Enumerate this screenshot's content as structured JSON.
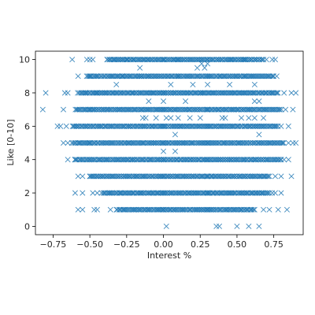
{
  "chart_data": {
    "type": "scatter",
    "marker": "x",
    "color": "#1f77b4",
    "xlabel": "Interest %",
    "ylabel": "Like [0-10]",
    "xlim": [
      -0.87,
      0.95
    ],
    "ylim": [
      -0.5,
      10.5
    ],
    "xticks": [
      -0.75,
      -0.5,
      -0.25,
      0.0,
      0.25,
      0.5,
      0.75
    ],
    "xtick_labels": [
      "−0.75",
      "−0.50",
      "−0.25",
      "0.00",
      "0.25",
      "0.50",
      "0.75"
    ],
    "yticks": [
      0,
      2,
      4,
      6,
      8,
      10
    ],
    "ytick_labels": [
      "0",
      "2",
      "4",
      "6",
      "8",
      "10"
    ],
    "grid": false,
    "dense_ranges": [
      {
        "y": 10,
        "x": [
          -0.38,
          0.68
        ]
      },
      {
        "y": 9,
        "x": [
          -0.52,
          0.75
        ]
      },
      {
        "y": 8,
        "x": [
          -0.58,
          0.78
        ]
      },
      {
        "y": 7,
        "x": [
          -0.6,
          0.8
        ]
      },
      {
        "y": 6,
        "x": [
          -0.62,
          0.78
        ]
      },
      {
        "y": 5,
        "x": [
          -0.62,
          0.82
        ]
      },
      {
        "y": 4,
        "x": [
          -0.6,
          0.8
        ]
      },
      {
        "y": 3,
        "x": [
          -0.5,
          0.72
        ]
      },
      {
        "y": 2,
        "x": [
          -0.42,
          0.72
        ]
      },
      {
        "y": 1,
        "x": [
          -0.32,
          0.62
        ]
      }
    ],
    "points": [
      {
        "x": -0.52,
        "y": 10
      },
      {
        "x": -0.5,
        "y": 10
      },
      {
        "x": -0.48,
        "y": 10
      },
      {
        "x": -0.38,
        "y": 10
      },
      {
        "x": -0.33,
        "y": 10
      },
      {
        "x": -0.25,
        "y": 10
      },
      {
        "x": -0.2,
        "y": 10
      },
      {
        "x": 0.0,
        "y": 10
      },
      {
        "x": 0.1,
        "y": 10
      },
      {
        "x": 0.3,
        "y": 10
      },
      {
        "x": 0.55,
        "y": 10
      },
      {
        "x": 0.7,
        "y": 10
      },
      {
        "x": 0.74,
        "y": 10
      },
      {
        "x": 0.76,
        "y": 10
      },
      {
        "x": -0.62,
        "y": 10
      },
      {
        "x": -0.28,
        "y": 9
      },
      {
        "x": -0.15,
        "y": 9
      },
      {
        "x": 0.1,
        "y": 9
      },
      {
        "x": 0.3,
        "y": 9
      },
      {
        "x": 0.55,
        "y": 9
      },
      {
        "x": 0.77,
        "y": 9
      },
      {
        "x": -0.58,
        "y": 9
      },
      {
        "x": -0.5,
        "y": 9
      },
      {
        "x": -0.16,
        "y": 9.5
      },
      {
        "x": 0.23,
        "y": 9.5
      },
      {
        "x": 0.28,
        "y": 9.5
      },
      {
        "x": 0.26,
        "y": 9.75
      },
      {
        "x": 0.3,
        "y": 9.75
      },
      {
        "x": -0.8,
        "y": 8
      },
      {
        "x": -0.67,
        "y": 8
      },
      {
        "x": -0.65,
        "y": 8
      },
      {
        "x": -0.45,
        "y": 8
      },
      {
        "x": 0.0,
        "y": 8
      },
      {
        "x": 0.25,
        "y": 8
      },
      {
        "x": 0.82,
        "y": 8
      },
      {
        "x": 0.87,
        "y": 8
      },
      {
        "x": 0.9,
        "y": 8
      },
      {
        "x": -0.32,
        "y": 8.5
      },
      {
        "x": 0.05,
        "y": 8.5
      },
      {
        "x": 0.2,
        "y": 8.5
      },
      {
        "x": 0.3,
        "y": 8.5
      },
      {
        "x": 0.45,
        "y": 8.5
      },
      {
        "x": 0.62,
        "y": 8.5
      },
      {
        "x": -0.1,
        "y": 7.5
      },
      {
        "x": 0.0,
        "y": 7.5
      },
      {
        "x": 0.15,
        "y": 7.5
      },
      {
        "x": 0.62,
        "y": 7.5
      },
      {
        "x": 0.65,
        "y": 7.5
      },
      {
        "x": -0.82,
        "y": 7
      },
      {
        "x": -0.68,
        "y": 7
      },
      {
        "x": -0.5,
        "y": 7
      },
      {
        "x": 0.0,
        "y": 7
      },
      {
        "x": 0.3,
        "y": 7
      },
      {
        "x": 0.83,
        "y": 7
      },
      {
        "x": 0.88,
        "y": 7
      },
      {
        "x": -0.14,
        "y": 6.5
      },
      {
        "x": -0.12,
        "y": 6.5
      },
      {
        "x": -0.05,
        "y": 6.5
      },
      {
        "x": 0.02,
        "y": 6.5
      },
      {
        "x": 0.05,
        "y": 6.5
      },
      {
        "x": 0.1,
        "y": 6.5
      },
      {
        "x": 0.18,
        "y": 6.5
      },
      {
        "x": 0.25,
        "y": 6.5
      },
      {
        "x": 0.4,
        "y": 6.5
      },
      {
        "x": 0.42,
        "y": 6.5
      },
      {
        "x": 0.53,
        "y": 6.5
      },
      {
        "x": 0.58,
        "y": 6.5
      },
      {
        "x": 0.62,
        "y": 6.5
      },
      {
        "x": 0.68,
        "y": 6.5
      },
      {
        "x": -0.72,
        "y": 6
      },
      {
        "x": -0.7,
        "y": 6
      },
      {
        "x": -0.66,
        "y": 6
      },
      {
        "x": 0.0,
        "y": 6
      },
      {
        "x": 0.3,
        "y": 6
      },
      {
        "x": 0.8,
        "y": 6
      },
      {
        "x": 0.85,
        "y": 6
      },
      {
        "x": 0.08,
        "y": 5.5
      },
      {
        "x": 0.65,
        "y": 5.5
      },
      {
        "x": -0.68,
        "y": 5
      },
      {
        "x": -0.65,
        "y": 5
      },
      {
        "x": -0.5,
        "y": 5
      },
      {
        "x": 0.0,
        "y": 5
      },
      {
        "x": 0.3,
        "y": 5
      },
      {
        "x": 0.85,
        "y": 5
      },
      {
        "x": 0.88,
        "y": 5
      },
      {
        "x": 0.9,
        "y": 5
      },
      {
        "x": 0.0,
        "y": 4.5
      },
      {
        "x": 0.08,
        "y": 4.5
      },
      {
        "x": -0.65,
        "y": 4
      },
      {
        "x": -0.6,
        "y": 4
      },
      {
        "x": -0.5,
        "y": 4
      },
      {
        "x": 0.0,
        "y": 4
      },
      {
        "x": 0.3,
        "y": 4
      },
      {
        "x": 0.82,
        "y": 4
      },
      {
        "x": 0.85,
        "y": 4
      },
      {
        "x": -0.58,
        "y": 3
      },
      {
        "x": -0.55,
        "y": 3
      },
      {
        "x": -0.5,
        "y": 3
      },
      {
        "x": 0.0,
        "y": 3
      },
      {
        "x": 0.3,
        "y": 3
      },
      {
        "x": 0.76,
        "y": 3
      },
      {
        "x": 0.8,
        "y": 3
      },
      {
        "x": 0.87,
        "y": 3
      },
      {
        "x": -0.6,
        "y": 2
      },
      {
        "x": -0.55,
        "y": 2
      },
      {
        "x": -0.48,
        "y": 2
      },
      {
        "x": -0.45,
        "y": 2
      },
      {
        "x": 0.0,
        "y": 2
      },
      {
        "x": 0.3,
        "y": 2
      },
      {
        "x": 0.74,
        "y": 2
      },
      {
        "x": 0.76,
        "y": 2
      },
      {
        "x": 0.8,
        "y": 2
      },
      {
        "x": -0.58,
        "y": 1
      },
      {
        "x": -0.55,
        "y": 1
      },
      {
        "x": -0.47,
        "y": 1
      },
      {
        "x": -0.45,
        "y": 1
      },
      {
        "x": -0.36,
        "y": 1
      },
      {
        "x": 0.0,
        "y": 1
      },
      {
        "x": 0.3,
        "y": 1
      },
      {
        "x": 0.68,
        "y": 1
      },
      {
        "x": 0.72,
        "y": 1
      },
      {
        "x": 0.78,
        "y": 1
      },
      {
        "x": 0.84,
        "y": 1
      },
      {
        "x": 0.02,
        "y": 0
      },
      {
        "x": 0.36,
        "y": 0
      },
      {
        "x": 0.38,
        "y": 0
      },
      {
        "x": 0.5,
        "y": 0
      },
      {
        "x": 0.58,
        "y": 0
      },
      {
        "x": 0.65,
        "y": 0
      }
    ]
  }
}
